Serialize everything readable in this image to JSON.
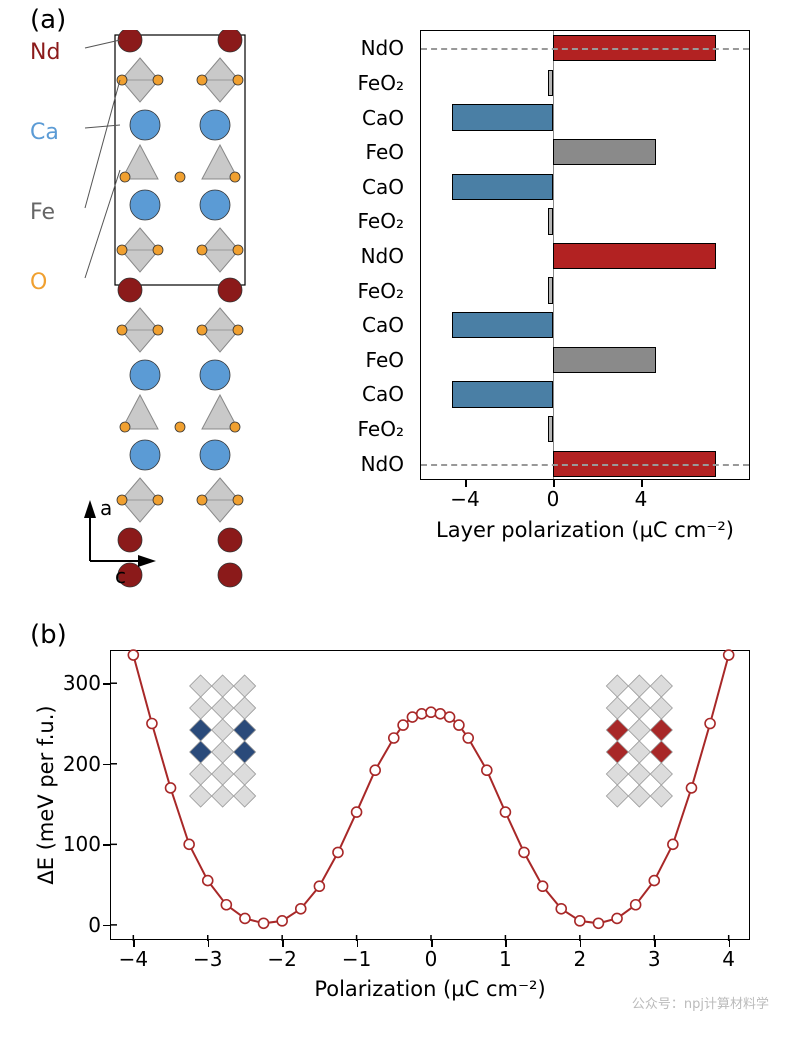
{
  "panel_a": {
    "label": "(a)",
    "atoms": [
      {
        "name": "Nd",
        "color": "#8b1a1a",
        "y": 10
      },
      {
        "name": "Ca",
        "color": "#5b9bd5",
        "y": 90
      },
      {
        "name": "Fe",
        "color": "#666666",
        "y": 170
      },
      {
        "name": "O",
        "color": "#f0a030",
        "y": 240
      }
    ],
    "axes": {
      "vertical": "a",
      "horizontal": "c"
    },
    "bar_chart": {
      "xlabel": "Layer polarization (µC cm⁻²)",
      "xlim": [
        -6,
        9
      ],
      "xticks": [
        -4,
        0,
        4
      ],
      "zero": 0,
      "dashed_rows": [
        0,
        12
      ],
      "bars": [
        {
          "label": "NdO",
          "value": 7.4,
          "color": "#b22222"
        },
        {
          "label": "FeO₂",
          "value": -0.25,
          "color": "#b5b5b5"
        },
        {
          "label": "CaO",
          "value": -4.6,
          "color": "#4a7fa5"
        },
        {
          "label": "FeO",
          "value": 4.7,
          "color": "#8a8a8a"
        },
        {
          "label": "CaO",
          "value": -4.6,
          "color": "#4a7fa5"
        },
        {
          "label": "FeO₂",
          "value": -0.25,
          "color": "#b5b5b5"
        },
        {
          "label": "NdO",
          "value": 7.4,
          "color": "#b22222"
        },
        {
          "label": "FeO₂",
          "value": -0.25,
          "color": "#b5b5b5"
        },
        {
          "label": "CaO",
          "value": -4.6,
          "color": "#4a7fa5"
        },
        {
          "label": "FeO",
          "value": 4.7,
          "color": "#8a8a8a"
        },
        {
          "label": "CaO",
          "value": -4.6,
          "color": "#4a7fa5"
        },
        {
          "label": "FeO₂",
          "value": -0.25,
          "color": "#b5b5b5"
        },
        {
          "label": "NdO",
          "value": 7.4,
          "color": "#b22222"
        }
      ]
    },
    "crystal": {
      "cell_stroke": "#000000",
      "octahedra_fill": "#c9c9c9",
      "octahedra_stroke": "#888888",
      "nd_color": "#8b1a1a",
      "ca_color": "#5b9bd5",
      "fe_color": "#666666",
      "o_color": "#f0a030"
    }
  },
  "panel_b": {
    "label": "(b)",
    "ylabel": "ΔE (meV per f.u.)",
    "xlabel": "Polarization (µC cm⁻²)",
    "xlim": [
      -4.3,
      4.3
    ],
    "ylim": [
      -20,
      340
    ],
    "xticks": [
      -4,
      -3,
      -2,
      -1,
      0,
      1,
      2,
      3,
      4
    ],
    "yticks": [
      0,
      100,
      200,
      300
    ],
    "line_color": "#a82828",
    "marker_fill": "#ffffff",
    "marker_radius": 5,
    "insets": {
      "left_color": "#2a4a7a",
      "right_color": "#a82828",
      "poly_fill": "#dcdcdc",
      "poly_stroke": "#999999"
    },
    "data": [
      {
        "x": -4.0,
        "y": 335
      },
      {
        "x": -3.75,
        "y": 250
      },
      {
        "x": -3.5,
        "y": 170
      },
      {
        "x": -3.25,
        "y": 100
      },
      {
        "x": -3.0,
        "y": 55
      },
      {
        "x": -2.75,
        "y": 25
      },
      {
        "x": -2.5,
        "y": 8
      },
      {
        "x": -2.25,
        "y": 2
      },
      {
        "x": -2.0,
        "y": 5
      },
      {
        "x": -1.75,
        "y": 20
      },
      {
        "x": -1.5,
        "y": 48
      },
      {
        "x": -1.25,
        "y": 90
      },
      {
        "x": -1.0,
        "y": 140
      },
      {
        "x": -0.75,
        "y": 192
      },
      {
        "x": -0.5,
        "y": 232
      },
      {
        "x": -0.375,
        "y": 248
      },
      {
        "x": -0.25,
        "y": 258
      },
      {
        "x": -0.125,
        "y": 262
      },
      {
        "x": 0.0,
        "y": 264
      },
      {
        "x": 0.125,
        "y": 262
      },
      {
        "x": 0.25,
        "y": 258
      },
      {
        "x": 0.375,
        "y": 248
      },
      {
        "x": 0.5,
        "y": 232
      },
      {
        "x": 0.75,
        "y": 192
      },
      {
        "x": 1.0,
        "y": 140
      },
      {
        "x": 1.25,
        "y": 90
      },
      {
        "x": 1.5,
        "y": 48
      },
      {
        "x": 1.75,
        "y": 20
      },
      {
        "x": 2.0,
        "y": 5
      },
      {
        "x": 2.25,
        "y": 2
      },
      {
        "x": 2.5,
        "y": 8
      },
      {
        "x": 2.75,
        "y": 25
      },
      {
        "x": 3.0,
        "y": 55
      },
      {
        "x": 3.25,
        "y": 100
      },
      {
        "x": 3.5,
        "y": 170
      },
      {
        "x": 3.75,
        "y": 250
      },
      {
        "x": 4.0,
        "y": 335
      }
    ]
  },
  "watermark": "公众号：npj计算材料学"
}
